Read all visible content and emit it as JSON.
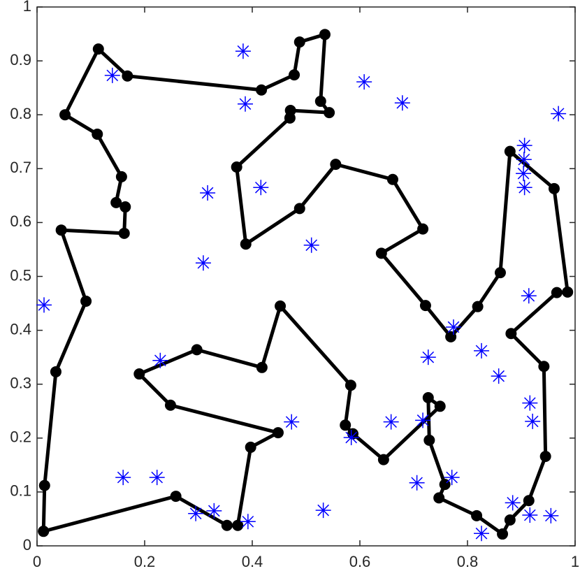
{
  "chart_data": {
    "type": "scatter",
    "xlim": [
      0,
      1
    ],
    "ylim": [
      0,
      1
    ],
    "xticks": [
      0,
      0.2,
      0.4,
      0.6,
      0.8,
      1
    ],
    "yticks": [
      0,
      0.1,
      0.2,
      0.3,
      0.4,
      0.5,
      0.6,
      0.7,
      0.8,
      0.9,
      1
    ],
    "grid": false,
    "series": [
      {
        "color": "#000000",
        "line": true,
        "marker": "o",
        "x": [
          0.012,
          0.014,
          0.035,
          0.091,
          0.045,
          0.162,
          0.164,
          0.147,
          0.157,
          0.112,
          0.052,
          0.114,
          0.168,
          0.417,
          0.478,
          0.488,
          0.535,
          0.527,
          0.543,
          0.471,
          0.47,
          0.371,
          0.388,
          0.488,
          0.555,
          0.661,
          0.717,
          0.64,
          0.722,
          0.769,
          0.819,
          0.861,
          0.879,
          0.961,
          0.986,
          0.966,
          0.881,
          0.942,
          0.945,
          0.914,
          0.879,
          0.865,
          0.817,
          0.747,
          0.758,
          0.729,
          0.727,
          0.749,
          0.644,
          0.587,
          0.573,
          0.583,
          0.452,
          0.418,
          0.297,
          0.19,
          0.248,
          0.448,
          0.397,
          0.373,
          0.353,
          0.258,
          0.012
        ],
        "values": [
          0.027,
          0.112,
          0.323,
          0.454,
          0.586,
          0.58,
          0.629,
          0.637,
          0.685,
          0.764,
          0.8,
          0.922,
          0.872,
          0.846,
          0.874,
          0.935,
          0.949,
          0.825,
          0.804,
          0.808,
          0.794,
          0.703,
          0.56,
          0.626,
          0.708,
          0.68,
          0.588,
          0.543,
          0.446,
          0.388,
          0.444,
          0.507,
          0.732,
          0.663,
          0.471,
          0.47,
          0.394,
          0.333,
          0.166,
          0.084,
          0.048,
          0.022,
          0.056,
          0.089,
          0.114,
          0.196,
          0.275,
          0.259,
          0.16,
          0.208,
          0.224,
          0.298,
          0.445,
          0.331,
          0.364,
          0.319,
          0.261,
          0.21,
          0.183,
          0.038,
          0.038,
          0.092,
          0.027
        ]
      },
      {
        "color": "#0000ff",
        "line": false,
        "marker": "*",
        "x": [
          0.013,
          0.14,
          0.383,
          0.387,
          0.608,
          0.679,
          0.969,
          0.906,
          0.905,
          0.904,
          0.906,
          0.317,
          0.416,
          0.51,
          0.309,
          0.914,
          0.774,
          0.826,
          0.727,
          0.858,
          0.229,
          0.916,
          0.921,
          0.473,
          0.658,
          0.717,
          0.584,
          0.16,
          0.223,
          0.771,
          0.706,
          0.884,
          0.916,
          0.955,
          0.532,
          0.329,
          0.295,
          0.392,
          0.826
        ],
        "values": [
          0.447,
          0.873,
          0.918,
          0.82,
          0.861,
          0.822,
          0.802,
          0.743,
          0.717,
          0.691,
          0.665,
          0.655,
          0.665,
          0.558,
          0.525,
          0.464,
          0.406,
          0.362,
          0.35,
          0.315,
          0.344,
          0.265,
          0.231,
          0.23,
          0.23,
          0.233,
          0.201,
          0.127,
          0.127,
          0.127,
          0.117,
          0.08,
          0.057,
          0.056,
          0.066,
          0.065,
          0.06,
          0.045,
          0.023
        ]
      }
    ]
  }
}
